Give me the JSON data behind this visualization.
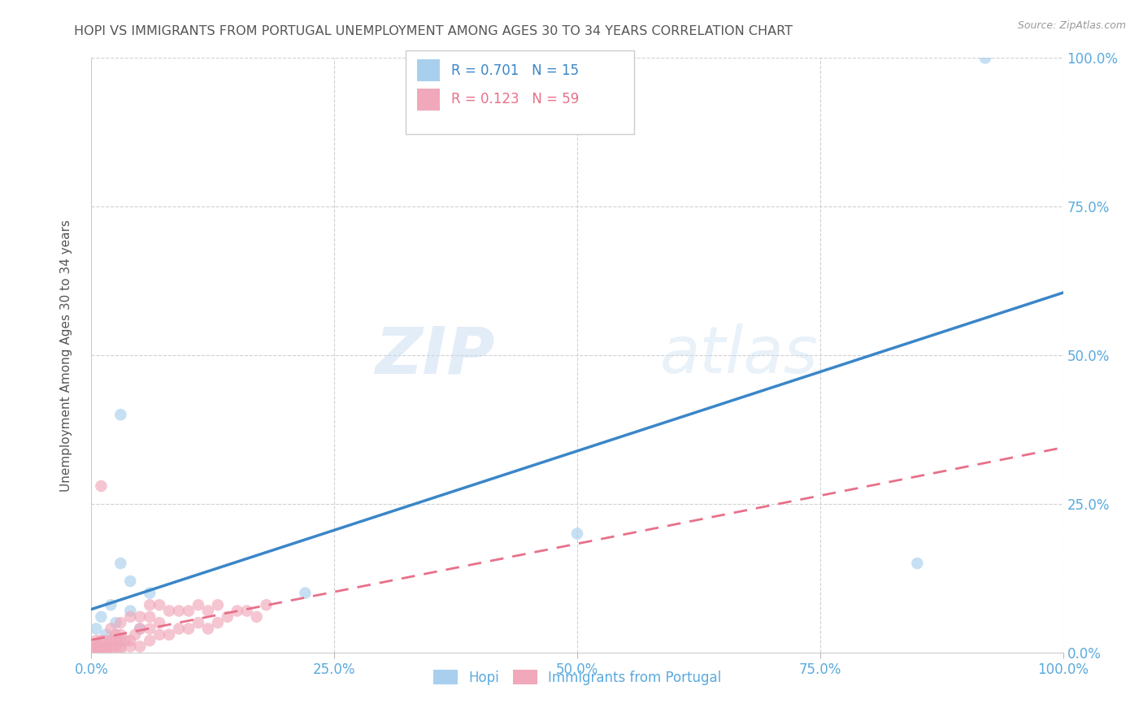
{
  "title": "HOPI VS IMMIGRANTS FROM PORTUGAL UNEMPLOYMENT AMONG AGES 30 TO 34 YEARS CORRELATION CHART",
  "source": "Source: ZipAtlas.com",
  "ylabel": "Unemployment Among Ages 30 to 34 years",
  "watermark_zip": "ZIP",
  "watermark_atlas": "atlas",
  "hopi_R": 0.701,
  "hopi_N": 15,
  "portugal_R": 0.123,
  "portugal_N": 59,
  "hopi_color": "#A8CFEE",
  "portugal_color": "#F0A8BA",
  "hopi_line_color": "#3A86C8",
  "portugal_line_color": "#E8708A",
  "axis_label_color": "#5AAADE",
  "title_color": "#555555",
  "grid_color": "#CCCCCC",
  "background_color": "#FFFFFF",
  "hopi_x": [
    0.005,
    0.01,
    0.015,
    0.02,
    0.025,
    0.03,
    0.04,
    0.04,
    0.05,
    0.06,
    0.03,
    0.22,
    0.5,
    0.85,
    0.92
  ],
  "hopi_y": [
    0.04,
    0.06,
    0.03,
    0.08,
    0.05,
    0.4,
    0.07,
    0.12,
    0.04,
    0.1,
    0.15,
    0.1,
    0.2,
    0.15,
    1.0
  ],
  "portugal_x": [
    0.005,
    0.005,
    0.005,
    0.005,
    0.005,
    0.008,
    0.008,
    0.01,
    0.01,
    0.01,
    0.01,
    0.01,
    0.015,
    0.015,
    0.015,
    0.02,
    0.02,
    0.02,
    0.02,
    0.025,
    0.025,
    0.025,
    0.03,
    0.03,
    0.03,
    0.03,
    0.03,
    0.035,
    0.04,
    0.04,
    0.04,
    0.045,
    0.05,
    0.05,
    0.05,
    0.06,
    0.06,
    0.06,
    0.06,
    0.07,
    0.07,
    0.07,
    0.08,
    0.08,
    0.09,
    0.09,
    0.1,
    0.1,
    0.11,
    0.11,
    0.12,
    0.12,
    0.13,
    0.13,
    0.14,
    0.15,
    0.16,
    0.17,
    0.18
  ],
  "portugal_y": [
    0.005,
    0.005,
    0.01,
    0.01,
    0.02,
    0.005,
    0.01,
    0.005,
    0.01,
    0.01,
    0.02,
    0.28,
    0.005,
    0.01,
    0.02,
    0.005,
    0.01,
    0.02,
    0.04,
    0.01,
    0.02,
    0.03,
    0.005,
    0.01,
    0.02,
    0.03,
    0.05,
    0.02,
    0.01,
    0.02,
    0.06,
    0.03,
    0.01,
    0.04,
    0.06,
    0.02,
    0.04,
    0.06,
    0.08,
    0.03,
    0.05,
    0.08,
    0.03,
    0.07,
    0.04,
    0.07,
    0.04,
    0.07,
    0.05,
    0.08,
    0.04,
    0.07,
    0.05,
    0.08,
    0.06,
    0.07,
    0.07,
    0.06,
    0.08
  ],
  "xlim": [
    0.0,
    1.0
  ],
  "ylim": [
    0.0,
    1.0
  ],
  "xticks": [
    0.0,
    0.25,
    0.5,
    0.75,
    1.0
  ],
  "yticks": [
    0.0,
    0.25,
    0.5,
    0.75,
    1.0
  ],
  "xticklabels": [
    "0.0%",
    "25.0%",
    "50.0%",
    "75.0%",
    "100.0%"
  ],
  "yticklabels": [
    "0.0%",
    "25.0%",
    "50.0%",
    "75.0%",
    "100.0%"
  ],
  "legend_labels": [
    "Hopi",
    "Immigrants from Portugal"
  ],
  "marker_size": 110
}
